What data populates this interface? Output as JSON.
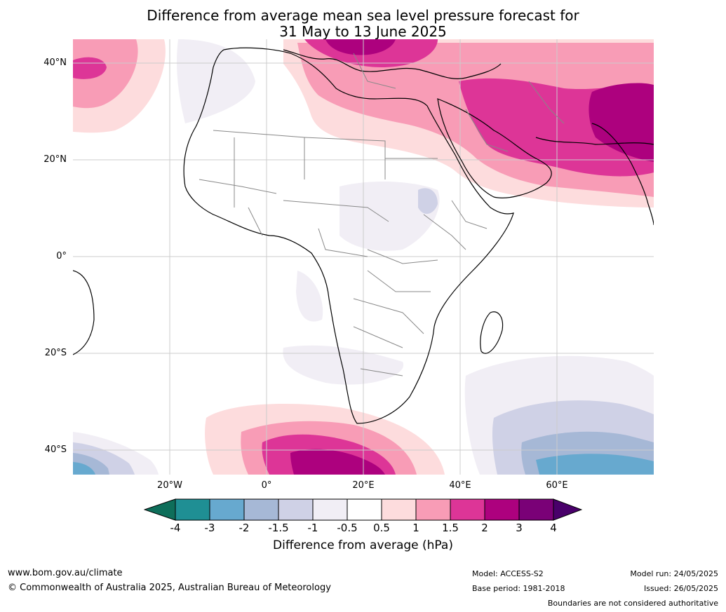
{
  "title": {
    "line1": "Difference from average mean sea level pressure forecast for",
    "line2": "31 May to 13 June 2025"
  },
  "map": {
    "lat_labels": [
      "40°N",
      "20°N",
      "0°",
      "20°S",
      "40°S"
    ],
    "lon_labels": [
      "20°W",
      "0°",
      "20°E",
      "40°E",
      "60°E"
    ]
  },
  "colorbar": {
    "title": "Difference from average (hPa)",
    "tick_labels": [
      "-4",
      "-3",
      "-2",
      "-1.5",
      "-1",
      "-0.5",
      "0.5",
      "1",
      "1.5",
      "2",
      "3",
      "4"
    ],
    "colors": {
      "below_-4": "#0e6e5a",
      "-4_-3": "#1f8f94",
      "-3_-2": "#67a9cf",
      "-2_-1.5": "#a6b8d6",
      "-1.5_-1": "#cfd1e6",
      "-1_-0.5": "#f1eef5",
      "-0.5_0.5": "#ffffff",
      "0.5_1": "#fddcdd",
      "1_1.5": "#f89cb6",
      "1.5_2": "#dd3597",
      "2_3": "#ad017e",
      "3_4": "#7a0177",
      "above_4": "#49006a"
    }
  },
  "footer": {
    "url": "www.bom.gov.au/climate",
    "copyright": "© Commonwealth of Australia 2025, Australian Bureau of Meteorology",
    "model": "Model: ACCESS-S2",
    "base_period": "Base period: 1981-2018",
    "model_run": "Model run: 24/05/2025",
    "issued": "Issued: 26/05/2025",
    "boundaries_note": "Boundaries are not considered authoritative"
  }
}
